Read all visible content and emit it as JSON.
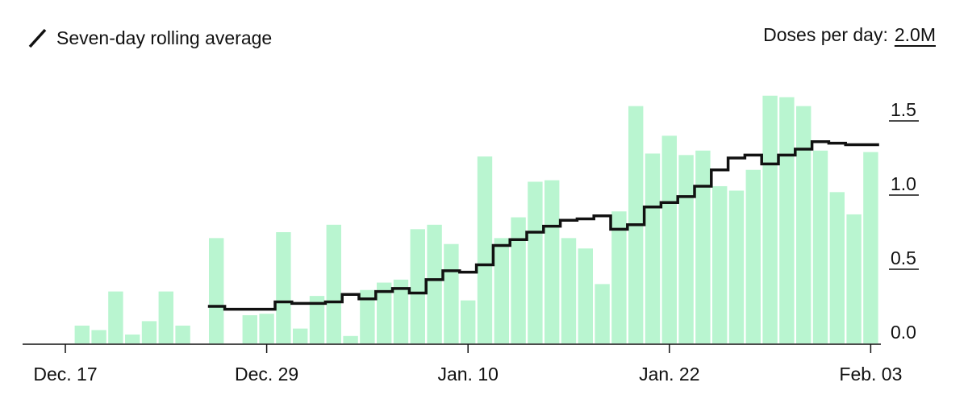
{
  "chart_data": {
    "type": "bar",
    "legend": {
      "label": "Seven-day rolling average",
      "placement": "top-left"
    },
    "unit_label": "Doses per day:",
    "y_ticks": [
      "0.0",
      "0.5",
      "1.0",
      "1.5",
      "2.0M"
    ],
    "y_tick_values": [
      0,
      0.5,
      1.0,
      1.5,
      2.0
    ],
    "ylim": [
      0,
      2.0
    ],
    "x_ticks": [
      {
        "label": "Dec. 17",
        "index": 0
      },
      {
        "label": "Dec. 29",
        "index": 12
      },
      {
        "label": "Jan. 10",
        "index": 24
      },
      {
        "label": "Jan. 22",
        "index": 36
      },
      {
        "label": "Feb. 03",
        "index": 48
      }
    ],
    "categories": [
      "Dec 17",
      "Dec 18",
      "Dec 19",
      "Dec 20",
      "Dec 21",
      "Dec 22",
      "Dec 23",
      "Dec 24",
      "Dec 25",
      "Dec 26",
      "Dec 27",
      "Dec 28",
      "Dec 29",
      "Dec 30",
      "Dec 31",
      "Jan 1",
      "Jan 2",
      "Jan 3",
      "Jan 4",
      "Jan 5",
      "Jan 6",
      "Jan 7",
      "Jan 8",
      "Jan 9",
      "Jan 10",
      "Jan 11",
      "Jan 12",
      "Jan 13",
      "Jan 14",
      "Jan 15",
      "Jan 16",
      "Jan 17",
      "Jan 18",
      "Jan 19",
      "Jan 20",
      "Jan 21",
      "Jan 22",
      "Jan 23",
      "Jan 24",
      "Jan 25",
      "Jan 26",
      "Jan 27",
      "Jan 28",
      "Jan 29",
      "Jan 30",
      "Jan 31",
      "Feb 1",
      "Feb 2",
      "Feb 3"
    ],
    "series": [
      {
        "name": "Doses per day",
        "color": "#b9f5d0",
        "values": [
          0.0,
          0.12,
          0.09,
          0.35,
          0.06,
          0.15,
          0.35,
          0.12,
          0.0,
          0.71,
          0.0,
          0.19,
          0.2,
          0.75,
          0.1,
          0.32,
          0.8,
          0.05,
          0.36,
          0.41,
          0.43,
          0.77,
          0.8,
          0.67,
          0.29,
          1.26,
          0.71,
          0.85,
          1.09,
          1.1,
          0.71,
          0.64,
          0.4,
          0.89,
          1.6,
          1.28,
          1.4,
          1.27,
          1.3,
          1.06,
          1.03,
          1.17,
          1.67,
          1.66,
          1.6,
          1.3,
          1.02,
          0.87,
          1.29
        ]
      },
      {
        "name": "Seven-day rolling average",
        "type": "step",
        "color": "#111111",
        "values": [
          null,
          null,
          null,
          null,
          null,
          null,
          null,
          null,
          null,
          0.25,
          0.23,
          0.23,
          0.23,
          0.28,
          0.27,
          0.27,
          0.28,
          0.33,
          0.3,
          0.35,
          0.37,
          0.34,
          0.43,
          0.49,
          0.48,
          0.53,
          0.66,
          0.7,
          0.75,
          0.79,
          0.83,
          0.84,
          0.86,
          0.77,
          0.8,
          0.92,
          0.95,
          0.99,
          1.06,
          1.17,
          1.25,
          1.27,
          1.21,
          1.27,
          1.31,
          1.36,
          1.35,
          1.34,
          1.34
        ]
      }
    ],
    "grid": false
  }
}
